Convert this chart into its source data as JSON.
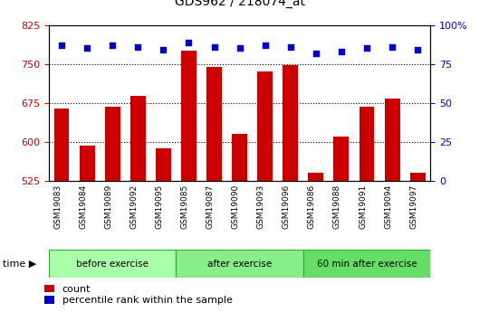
{
  "title": "GDS962 / 218074_at",
  "samples": [
    "GSM19083",
    "GSM19084",
    "GSM19089",
    "GSM19092",
    "GSM19095",
    "GSM19085",
    "GSM19087",
    "GSM19090",
    "GSM19093",
    "GSM19096",
    "GSM19086",
    "GSM19088",
    "GSM19091",
    "GSM19094",
    "GSM19097"
  ],
  "counts": [
    665,
    593,
    668,
    688,
    588,
    775,
    745,
    615,
    735,
    748,
    540,
    610,
    668,
    683,
    540
  ],
  "percentile_ranks": [
    87,
    85,
    87,
    86,
    84,
    89,
    86,
    85,
    87,
    86,
    82,
    83,
    85,
    86,
    84
  ],
  "groups": [
    {
      "label": "before exercise",
      "start": 0,
      "end": 5
    },
    {
      "label": "after exercise",
      "start": 5,
      "end": 10
    },
    {
      "label": "60 min after exercise",
      "start": 10,
      "end": 15
    }
  ],
  "group_colors": [
    "#aaffaa",
    "#88ee88",
    "#66dd66"
  ],
  "ylim_left": [
    525,
    825
  ],
  "ylim_right": [
    0,
    100
  ],
  "yticks_left": [
    525,
    600,
    675,
    750,
    825
  ],
  "yticks_right": [
    0,
    25,
    50,
    75,
    100
  ],
  "ytick_right_labels": [
    "0",
    "25",
    "50",
    "75",
    "100%"
  ],
  "bar_color": "#cc0000",
  "dot_color": "#0000cc",
  "bg_color": "#ffffff",
  "label_bg_color": "#cccccc",
  "bar_bottom": 525,
  "tick_label_color_left": "#cc0000",
  "tick_label_color_right": "#0000cc",
  "legend_count_label": "count",
  "legend_percentile_label": "percentile rank within the sample",
  "title_fontsize": 10,
  "axis_fontsize": 8,
  "label_fontsize": 6.5,
  "legend_fontsize": 8
}
